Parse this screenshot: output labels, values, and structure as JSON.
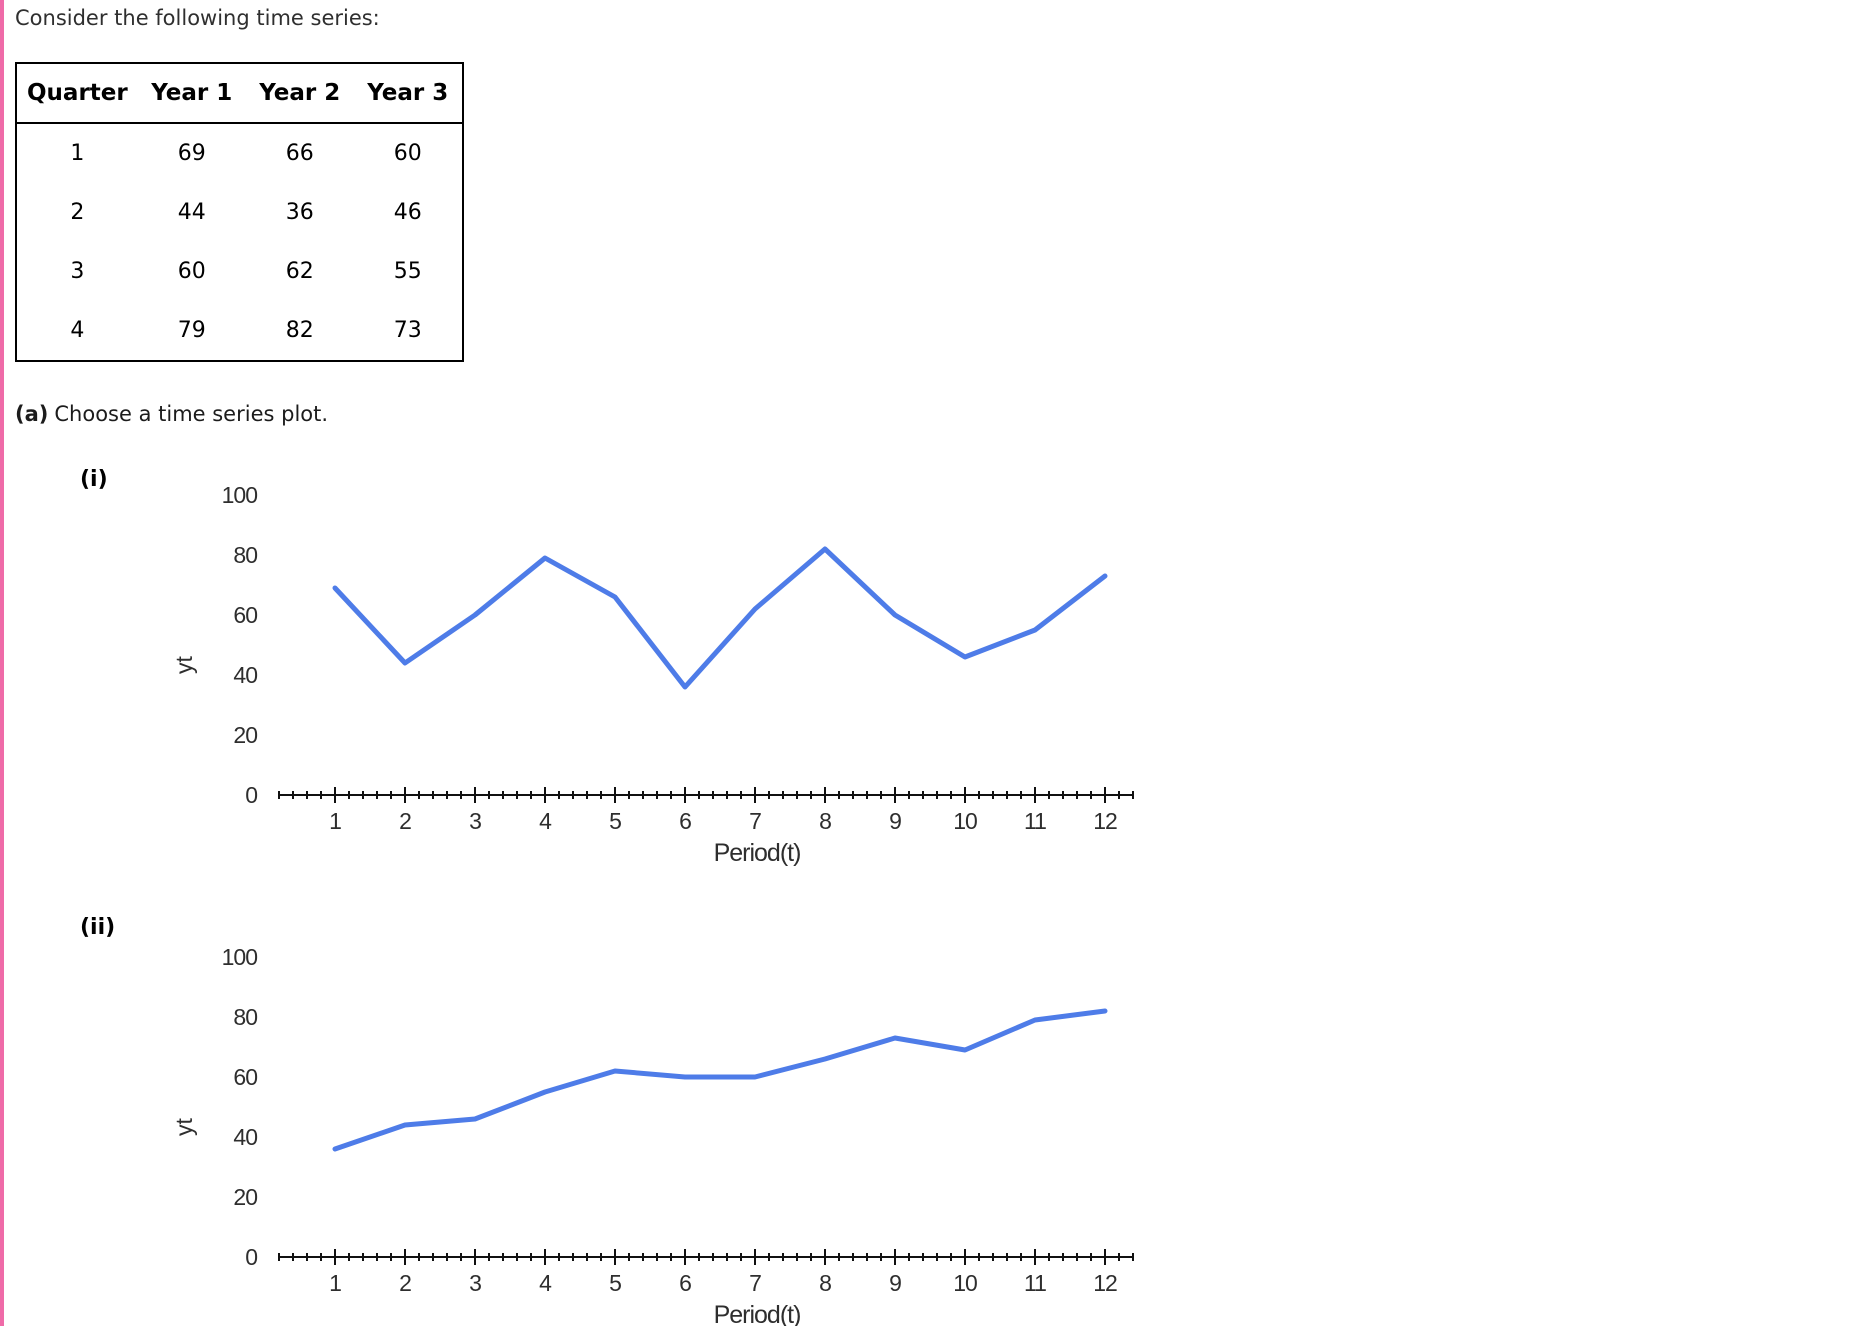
{
  "page": {
    "intro_text": "Consider the following time series:",
    "part_a_label": "(a)",
    "part_a_text": "Choose a time series plot.",
    "option_i_label": "(i)",
    "option_ii_label": "(ii)",
    "accent_color": "#ef6ba8"
  },
  "table": {
    "headers": [
      "Quarter",
      "Year 1",
      "Year 2",
      "Year 3"
    ],
    "rows": [
      [
        "1",
        "69",
        "66",
        "60"
      ],
      [
        "2",
        "44",
        "36",
        "46"
      ],
      [
        "3",
        "60",
        "62",
        "55"
      ],
      [
        "4",
        "79",
        "82",
        "73"
      ]
    ]
  },
  "chart_data": [
    {
      "type": "line",
      "option": "(i)",
      "x": [
        1,
        2,
        3,
        4,
        5,
        6,
        7,
        8,
        9,
        10,
        11,
        12
      ],
      "values": [
        69,
        44,
        60,
        79,
        66,
        36,
        62,
        82,
        60,
        46,
        55,
        73
      ],
      "xlabel": "Period(t)",
      "ylabel": "yt",
      "xticks": [
        1,
        2,
        3,
        4,
        5,
        6,
        7,
        8,
        9,
        10,
        11,
        12
      ],
      "yticks": [
        0,
        20,
        40,
        60,
        80,
        100
      ],
      "ylim": [
        0,
        100
      ],
      "grid": false,
      "legend": "none",
      "line_color": "#4e7ce8"
    },
    {
      "type": "line",
      "option": "(ii)",
      "x": [
        1,
        2,
        3,
        4,
        5,
        6,
        7,
        8,
        9,
        10,
        11,
        12
      ],
      "values": [
        36,
        44,
        46,
        55,
        62,
        60,
        60,
        66,
        73,
        69,
        79,
        82
      ],
      "xlabel": "Period(t)",
      "ylabel": "yt",
      "xticks": [
        1,
        2,
        3,
        4,
        5,
        6,
        7,
        8,
        9,
        10,
        11,
        12
      ],
      "yticks": [
        0,
        20,
        40,
        60,
        80,
        100
      ],
      "ylim": [
        0,
        100
      ],
      "grid": false,
      "legend": "none",
      "line_color": "#4e7ce8"
    }
  ]
}
